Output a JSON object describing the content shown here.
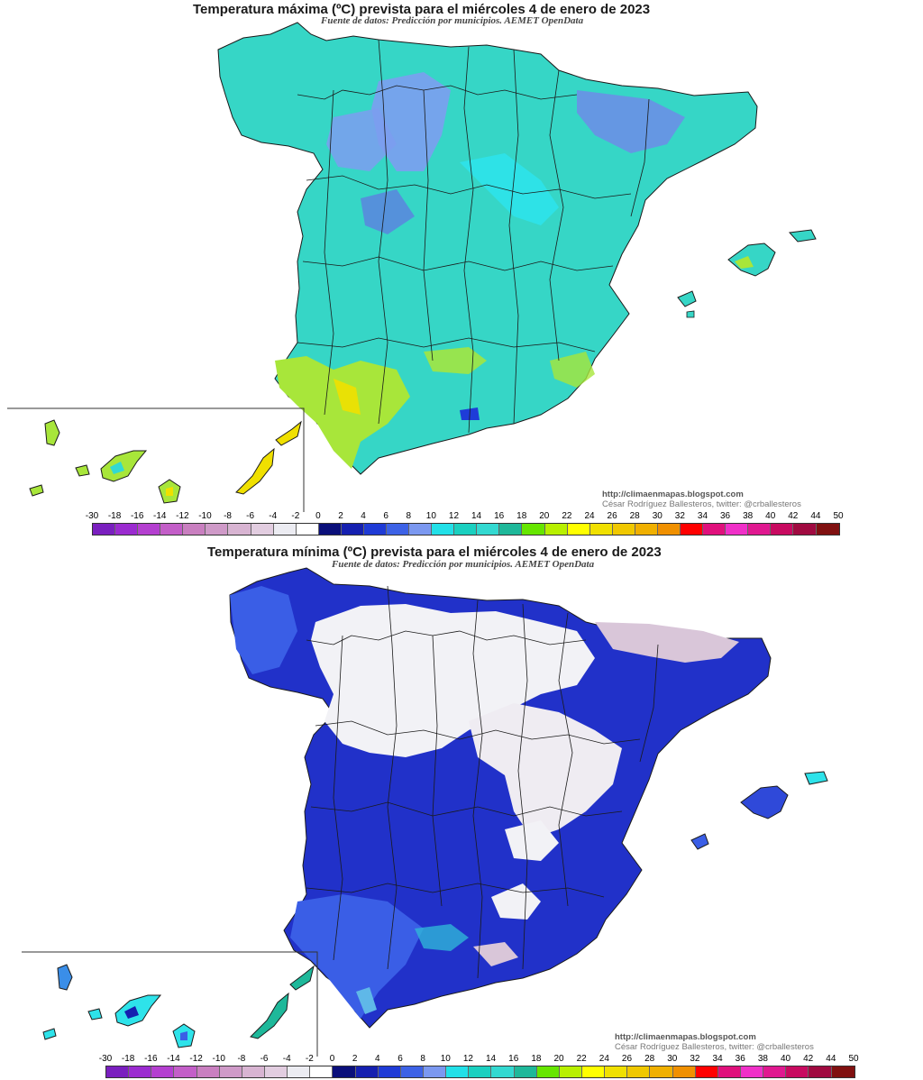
{
  "maps": [
    {
      "title": "Temperatura máxima (ºC) prevista para el miércoles 4 de enero de 2023",
      "source": "Fuente de datos: Predicción por municipios. AEMET OpenData",
      "credit_url": "http://climaenmapas.blogspot.com",
      "credit_author": "César Rodríguez Ballesteros, twitter: @crballesteros",
      "dominant_colors": [
        "#2fd6c4",
        "#33d9d1",
        "#7a9cf0",
        "#a8e63a",
        "#1e3cd8"
      ]
    },
    {
      "title": "Temperatura mínima (ºC) prevista para el miércoles 4 de enero de 2023",
      "source": "Fuente de datos: Predicción por municipios. AEMET OpenData",
      "credit_url": "http://climaenmapas.blogspot.com",
      "credit_author": "César Rodríguez Ballesteros, twitter: @crballesteros",
      "dominant_colors": [
        "#1d2bc8",
        "#2f49d9",
        "#f2f2f6",
        "#d9c7d9",
        "#33d9d1"
      ]
    }
  ],
  "legend": {
    "labels": [
      "-30",
      "-18",
      "-16",
      "-14",
      "-12",
      "-10",
      "-8",
      "-6",
      "-4",
      "-2",
      "0",
      "2",
      "4",
      "6",
      "8",
      "10",
      "12",
      "14",
      "16",
      "18",
      "20",
      "22",
      "24",
      "26",
      "28",
      "30",
      "32",
      "34",
      "36",
      "38",
      "40",
      "42",
      "44",
      "50"
    ],
    "colors": [
      "#7a1fbf",
      "#9b2bd0",
      "#b43fd0",
      "#c35ec8",
      "#c97fc0",
      "#cf9ac8",
      "#d8b4d2",
      "#e2cde0",
      "#ececf2",
      "#ffffff",
      "#0a0f7a",
      "#1520b0",
      "#1f3bd6",
      "#3d62e6",
      "#7b98f0",
      "#22e0e8",
      "#1ad0c0",
      "#33d9d1",
      "#1eb89a",
      "#66e600",
      "#b8f000",
      "#ffff00",
      "#f0e000",
      "#f0c800",
      "#f0b000",
      "#f09000",
      "#ff0000",
      "#e0107c",
      "#f030c8",
      "#e01890",
      "#c80a60",
      "#a00a40",
      "#801010"
    ]
  }
}
